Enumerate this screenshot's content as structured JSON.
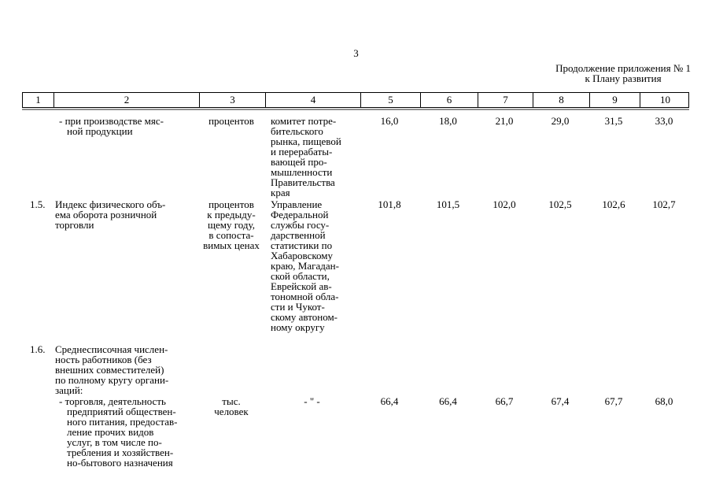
{
  "page": {
    "number": "3",
    "continuation": {
      "line1": "Продолжение приложения № 1",
      "line2": "к Плану развития"
    }
  },
  "table": {
    "columns": [
      "1",
      "2",
      "3",
      "4",
      "5",
      "6",
      "7",
      "8",
      "9",
      "10"
    ],
    "rows": [
      {
        "num": "",
        "name": "- при производстве мяс-\nной продукции",
        "unit": "процентов",
        "source": "комитет потре-\nбительского\nрынка, пищевой\nи перерабаты-\nвающей про-\nмышленности\nПравительства\nкрая",
        "values": [
          "16,0",
          "18,0",
          "21,0",
          "29,0",
          "31,5",
          "33,0"
        ]
      },
      {
        "num": "1.5.",
        "name": "Индекс физического объ-\nема оборота розничной\nторговли",
        "unit": "процентов\nк предыду-\nщему году,\nв сопоста-\nвимых ценах",
        "source": "Управление\nФедеральной\nслужбы госу-\nдарственной\nстатистики по\nХабаровскому\nкраю, Магадан-\nской области,\nЕврейской ав-\nтономной обла-\nсти и Чукот-\nскому автоном-\nному округу",
        "values": [
          "101,8",
          "101,5",
          "102,0",
          "102,5",
          "102,6",
          "102,7"
        ]
      },
      {
        "num": "1.6.",
        "name": "Среднесписочная числен-\nность работников (без\nвнешних совместителей)\nпо полному кругу органи-\nзаций:",
        "unit": "",
        "source": "",
        "values": [
          "",
          "",
          "",
          "",
          "",
          ""
        ]
      },
      {
        "num": "",
        "name": "- торговля, деятельность\nпредприятий обществен-\nного питания, предостав-\nление прочих видов\nуслуг, в том числе по-\nтребления и хозяйствен-\nно-бытового назначения",
        "unit": "тыс.\nчеловек",
        "source": "- \" -",
        "values": [
          "66,4",
          "66,4",
          "66,7",
          "67,4",
          "67,7",
          "68,0"
        ]
      }
    ]
  }
}
